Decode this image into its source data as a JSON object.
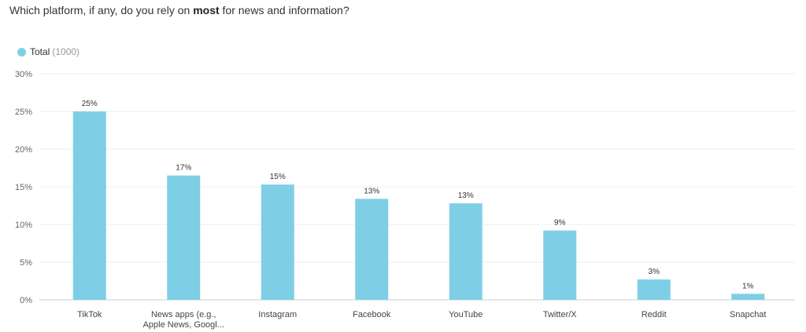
{
  "question": {
    "before": "Which platform, if any, do you rely on ",
    "bold": "most",
    "after": " for news and information?"
  },
  "legend": {
    "name": "Total",
    "count": "(1000)",
    "color": "#7ecfe6"
  },
  "chart_data": {
    "type": "bar",
    "title": "Which platform, if any, do you rely on most for news and information?",
    "categories": [
      "TikTok",
      "News apps (e.g., Apple News, Googl...",
      "Instagram",
      "Facebook",
      "YouTube",
      "Twitter/X",
      "Reddit",
      "Snapchat"
    ],
    "series": [
      {
        "name": "Total",
        "values": [
          25,
          16.5,
          15.3,
          13.4,
          12.8,
          9.2,
          2.7,
          0.8
        ],
        "labels": [
          "25%",
          "17%",
          "15%",
          "13%",
          "13%",
          "9%",
          "3%",
          "1%"
        ]
      }
    ],
    "ylim": [
      0,
      30
    ],
    "yticks": [
      "0%",
      "5%",
      "10%",
      "15%",
      "20%",
      "25%",
      "30%"
    ],
    "grid": true,
    "legend_position": "top-left",
    "bar_color": "#7ecfe6"
  }
}
